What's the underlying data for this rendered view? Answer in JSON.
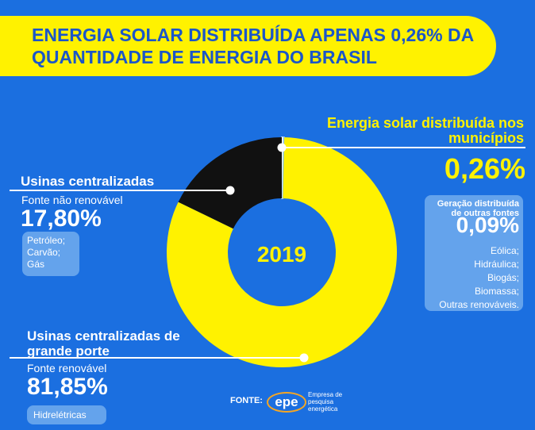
{
  "chart_data": {
    "type": "donut",
    "title": "ENERGIA SOLAR DISTRIBUÍDA APENAS 0,26% DA QUANTIDADE DE ENERGIA DO BRASIL",
    "center_label": "2019",
    "categories": [
      "Energia solar distribuída nos municípios",
      "Geração distribuída de outras fontes",
      "Usinas centralizadas de grande porte",
      "Usinas centralizadas"
    ],
    "values": [
      0.26,
      0.09,
      81.85,
      17.8
    ],
    "value_labels": [
      "0,26%",
      "0,09%",
      "81,85%",
      "17,80%"
    ],
    "colors": [
      "#ffffff",
      "#8cc4f0",
      "#fff200",
      "#111111"
    ],
    "subtitles": [
      null,
      null,
      "Fonte renovável",
      "Fonte não renovável"
    ],
    "sources": [
      [],
      [
        "Eólica;",
        "Hidráulica;",
        "Biogás;",
        "Biomassa;",
        "Outras renováveis."
      ],
      [
        "Hidrelétricas"
      ],
      [
        "Petróleo;",
        "Carvão;",
        "Gás"
      ]
    ],
    "source_label": "FONTE:",
    "source_logo": "epe",
    "source_name": "Empresa de pesquisa energética"
  }
}
